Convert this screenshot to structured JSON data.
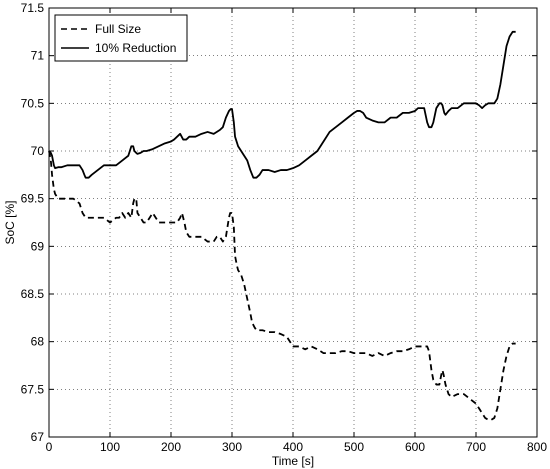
{
  "chart_data": {
    "type": "line",
    "xlabel": "Time [s]",
    "ylabel": "SoC [%]",
    "xlim": [
      0,
      800
    ],
    "ylim": [
      67,
      71.5
    ],
    "xticks": [
      0,
      100,
      200,
      300,
      400,
      500,
      600,
      700,
      800
    ],
    "xtick_labels": [
      "0",
      "100",
      "200",
      "300",
      "400",
      "500",
      "600",
      "700",
      "800"
    ],
    "yticks": [
      67,
      67.5,
      68,
      68.5,
      69,
      69.5,
      70,
      70.5,
      71,
      71.5
    ],
    "ytick_labels": [
      "67",
      "67.5",
      "68",
      "68.5",
      "69",
      "69.5",
      "70",
      "70.5",
      "71",
      "71.5"
    ],
    "grid": true,
    "legend_position": "top-left",
    "series": [
      {
        "name": "Full Size",
        "style": "dashed",
        "color": "#000000",
        "x": [
          0,
          3,
          5,
          8,
          10,
          15,
          20,
          30,
          40,
          50,
          55,
          60,
          70,
          80,
          90,
          100,
          110,
          115,
          120,
          125,
          130,
          135,
          138,
          140,
          143,
          145,
          150,
          155,
          160,
          165,
          170,
          175,
          180,
          185,
          190,
          195,
          200,
          205,
          210,
          215,
          218,
          222,
          225,
          230,
          240,
          250,
          260,
          270,
          275,
          280,
          285,
          290,
          295,
          297,
          300,
          303,
          305,
          308,
          310,
          315,
          320,
          325,
          330,
          333,
          337,
          340,
          345,
          350,
          360,
          370,
          380,
          390,
          395,
          400,
          410,
          420,
          430,
          440,
          450,
          460,
          470,
          480,
          490,
          500,
          510,
          520,
          530,
          540,
          550,
          560,
          570,
          580,
          590,
          600,
          605,
          610,
          615,
          620,
          623,
          627,
          630,
          635,
          640,
          643,
          645,
          647,
          650,
          655,
          660,
          670,
          680,
          690,
          700,
          705,
          710,
          715,
          720,
          725,
          730,
          735,
          740,
          745,
          750,
          755,
          760,
          765
        ],
        "y": [
          70.0,
          69.9,
          69.75,
          69.6,
          69.55,
          69.5,
          69.5,
          69.5,
          69.5,
          69.45,
          69.35,
          69.3,
          69.3,
          69.3,
          69.3,
          69.25,
          69.3,
          69.3,
          69.35,
          69.3,
          69.35,
          69.3,
          69.45,
          69.5,
          69.5,
          69.35,
          69.3,
          69.25,
          69.25,
          69.3,
          69.35,
          69.3,
          69.25,
          69.25,
          69.25,
          69.25,
          69.25,
          69.25,
          69.25,
          69.3,
          69.35,
          69.25,
          69.15,
          69.1,
          69.1,
          69.1,
          69.05,
          69.05,
          69.1,
          69.1,
          69.05,
          69.1,
          69.3,
          69.35,
          69.35,
          69.2,
          68.9,
          68.8,
          68.75,
          68.7,
          68.6,
          68.45,
          68.3,
          68.2,
          68.15,
          68.12,
          68.12,
          68.12,
          68.1,
          68.1,
          68.08,
          68.05,
          68.0,
          67.95,
          67.95,
          67.92,
          67.95,
          67.92,
          67.88,
          67.88,
          67.88,
          67.9,
          67.9,
          67.88,
          67.88,
          67.88,
          67.85,
          67.88,
          67.85,
          67.88,
          67.9,
          67.9,
          67.92,
          67.95,
          67.95,
          67.95,
          67.95,
          67.95,
          67.9,
          67.7,
          67.6,
          67.55,
          67.55,
          67.65,
          67.7,
          67.65,
          67.55,
          67.45,
          67.42,
          67.45,
          67.45,
          67.4,
          67.35,
          67.3,
          67.25,
          67.2,
          67.18,
          67.18,
          67.2,
          67.3,
          67.5,
          67.7,
          67.85,
          67.95,
          67.98,
          67.98
        ]
      },
      {
        "name": "10% Reduction",
        "style": "solid",
        "color": "#000000",
        "x": [
          0,
          3,
          5,
          8,
          10,
          15,
          20,
          30,
          40,
          50,
          55,
          58,
          60,
          65,
          70,
          80,
          90,
          100,
          110,
          120,
          130,
          135,
          138,
          140,
          143,
          145,
          150,
          155,
          160,
          170,
          180,
          190,
          200,
          205,
          210,
          215,
          220,
          225,
          230,
          240,
          250,
          260,
          270,
          280,
          285,
          290,
          295,
          298,
          300,
          303,
          305,
          310,
          315,
          320,
          325,
          330,
          335,
          340,
          345,
          350,
          360,
          370,
          380,
          390,
          400,
          410,
          420,
          430,
          440,
          450,
          460,
          470,
          480,
          490,
          500,
          505,
          510,
          515,
          520,
          530,
          540,
          550,
          560,
          570,
          580,
          590,
          600,
          605,
          610,
          615,
          620,
          623,
          627,
          630,
          635,
          640,
          643,
          645,
          648,
          650,
          655,
          660,
          670,
          680,
          690,
          700,
          705,
          710,
          715,
          720,
          725,
          730,
          735,
          740,
          745,
          750,
          755,
          760,
          765
        ],
        "y": [
          70.0,
          69.98,
          69.95,
          69.85,
          69.82,
          69.83,
          69.83,
          69.85,
          69.85,
          69.85,
          69.8,
          69.75,
          69.72,
          69.72,
          69.75,
          69.8,
          69.85,
          69.85,
          69.85,
          69.9,
          69.95,
          70.05,
          70.05,
          70.0,
          69.98,
          69.97,
          69.98,
          70.0,
          70.0,
          70.02,
          70.05,
          70.08,
          70.1,
          70.12,
          70.15,
          70.18,
          70.12,
          70.12,
          70.15,
          70.15,
          70.18,
          70.2,
          70.18,
          70.22,
          70.25,
          70.35,
          70.42,
          70.44,
          70.44,
          70.3,
          70.15,
          70.05,
          70.0,
          69.95,
          69.9,
          69.8,
          69.72,
          69.72,
          69.75,
          69.8,
          69.8,
          69.78,
          69.8,
          69.8,
          69.82,
          69.85,
          69.9,
          69.95,
          70.0,
          70.1,
          70.2,
          70.25,
          70.3,
          70.35,
          70.4,
          70.42,
          70.42,
          70.4,
          70.35,
          70.32,
          70.3,
          70.3,
          70.35,
          70.35,
          70.4,
          70.4,
          70.42,
          70.45,
          70.45,
          70.45,
          70.3,
          70.25,
          70.25,
          70.3,
          70.45,
          70.5,
          70.5,
          70.48,
          70.4,
          70.38,
          70.42,
          70.45,
          70.45,
          70.5,
          70.5,
          70.5,
          70.48,
          70.45,
          70.48,
          70.5,
          70.5,
          70.5,
          70.55,
          70.7,
          70.9,
          71.1,
          71.2,
          71.25,
          71.25
        ]
      }
    ]
  }
}
